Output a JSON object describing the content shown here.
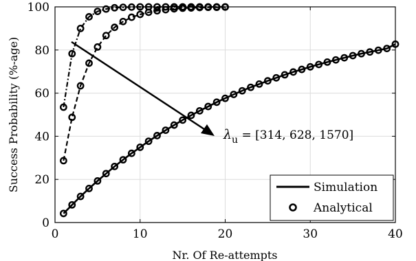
{
  "chart_data": {
    "type": "line",
    "xlabel": "Nr. Of Re-attempts",
    "ylabel": "Success Probability (%-age)",
    "xlim": [
      0,
      40
    ],
    "ylim": [
      0,
      100
    ],
    "xticks": [
      0,
      10,
      20,
      30,
      40
    ],
    "yticks": [
      0,
      20,
      40,
      60,
      80,
      100
    ],
    "grid": true,
    "legend_position": "bottom-right",
    "legend": {
      "simulation_label": "Simulation",
      "analytical_label": "Analytical"
    },
    "annotation": {
      "symbol": "λ",
      "subscript": "u",
      "text": " = [314, 628, 1570]"
    },
    "series": [
      {
        "lambda_u": 314,
        "x": [
          1,
          2,
          3,
          4,
          5,
          6,
          7,
          8,
          9,
          10,
          11,
          12,
          13,
          14,
          15,
          16,
          17,
          18,
          19,
          20
        ],
        "y": [
          53.5,
          78.3,
          90.0,
          95.4,
          97.9,
          99.0,
          99.6,
          99.8,
          99.9,
          100,
          100,
          100,
          100,
          100,
          100,
          100,
          100,
          100,
          100,
          100
        ]
      },
      {
        "lambda_u": 628,
        "x": [
          1,
          2,
          3,
          4,
          5,
          6,
          7,
          8,
          9,
          10,
          11,
          12,
          13,
          14,
          15,
          16,
          17,
          18,
          19,
          20
        ],
        "y": [
          28.7,
          48.8,
          63.4,
          73.9,
          81.4,
          86.7,
          90.5,
          93.2,
          95.2,
          96.5,
          97.5,
          98.2,
          98.7,
          99.1,
          99.4,
          99.5,
          99.7,
          99.8,
          99.8,
          99.9
        ]
      },
      {
        "lambda_u": 1570,
        "x": [
          1,
          2,
          3,
          4,
          5,
          6,
          7,
          8,
          9,
          10,
          11,
          12,
          13,
          14,
          15,
          16,
          17,
          18,
          19,
          20,
          21,
          22,
          23,
          24,
          25,
          26,
          27,
          28,
          29,
          30,
          31,
          32,
          33,
          34,
          35,
          36,
          37,
          38,
          39,
          40
        ],
        "y": [
          4.2,
          8.2,
          12.1,
          15.8,
          19.3,
          22.7,
          26.0,
          29.1,
          32.1,
          34.9,
          37.7,
          40.3,
          42.8,
          45.2,
          47.5,
          49.7,
          51.8,
          53.8,
          55.8,
          57.6,
          59.4,
          61.1,
          62.7,
          64.2,
          65.7,
          67.1,
          68.5,
          69.8,
          71.0,
          72.2,
          73.3,
          74.4,
          75.4,
          76.4,
          77.4,
          78.3,
          79.1,
          79.9,
          80.7,
          82.7
        ]
      }
    ]
  }
}
